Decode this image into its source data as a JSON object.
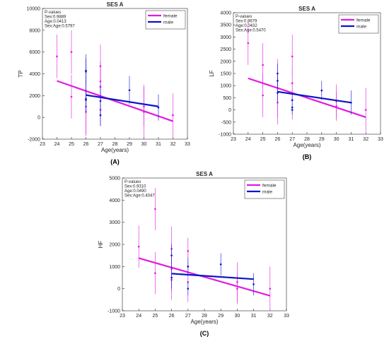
{
  "chart_data": [
    {
      "type": "scatter",
      "title": "SES A",
      "xlabel": "Age(years)",
      "ylabel": "TP",
      "panel_label": "(A)",
      "annotation": [
        "P-values",
        "Sex:0.9889",
        "Age:0.0413",
        "Sex:Age:0.5797"
      ],
      "xlim": [
        23,
        33
      ],
      "xticks": [
        23,
        24,
        25,
        26,
        27,
        28,
        29,
        30,
        31,
        32,
        33
      ],
      "ylim": [
        -2000,
        10000
      ],
      "yticks": [
        -2000,
        0,
        2000,
        4000,
        6000,
        8000,
        10000
      ],
      "legend": "upper right",
      "series": [
        {
          "name": "female",
          "color": "#e11be1",
          "x": [
            24,
            25,
            25,
            26,
            26,
            27,
            27,
            27,
            27,
            30,
            30,
            32
          ],
          "values": [
            5600,
            6000,
            1900,
            1000,
            500,
            4700,
            3300,
            2800,
            700,
            1000,
            500,
            200
          ],
          "errors": [
            2000,
            2000,
            2000,
            2500,
            2200,
            2000,
            1800,
            1500,
            1500,
            1800,
            2500,
            2000
          ],
          "fit_x": [
            24,
            32
          ],
          "fit_values": [
            3350,
            -350
          ]
        },
        {
          "name": "male",
          "color": "#0a14c8",
          "x": [
            26,
            26,
            26,
            26,
            27,
            27,
            29,
            31
          ],
          "values": [
            4300,
            4200,
            1700,
            1600,
            1500,
            200,
            2500,
            900
          ],
          "errors": [
            1500,
            1200,
            1200,
            1000,
            1500,
            1000,
            1300,
            1200
          ],
          "fit_x": [
            26,
            31
          ],
          "fit_values": [
            2050,
            1000
          ]
        }
      ]
    },
    {
      "type": "scatter",
      "title": "SES A",
      "xlabel": "Age(years)",
      "ylabel": "LF",
      "panel_label": "(B)",
      "annotation": [
        "P-values",
        "Sex:0.9679",
        "Age:0.0432",
        "Sex:Age:0.5470"
      ],
      "xlim": [
        23,
        33
      ],
      "xticks": [
        23,
        24,
        25,
        26,
        27,
        28,
        29,
        30,
        31,
        32,
        33
      ],
      "ylim": [
        -1000,
        4000
      ],
      "yticks": [
        -1000,
        -500,
        0,
        500,
        1000,
        1500,
        2000,
        2500,
        3000,
        3500,
        4000
      ],
      "legend": "upper right",
      "series": [
        {
          "name": "female",
          "color": "#e11be1",
          "x": [
            24,
            25,
            25,
            26,
            26,
            27,
            27,
            27,
            30,
            30,
            32
          ],
          "values": [
            2750,
            1850,
            600,
            900,
            300,
            2200,
            1100,
            400,
            350,
            150,
            0
          ],
          "errors": [
            900,
            900,
            900,
            1200,
            900,
            900,
            700,
            800,
            700,
            600,
            900
          ],
          "fit_x": [
            24,
            32
          ],
          "fit_values": [
            1300,
            -300
          ]
        },
        {
          "name": "male",
          "color": "#0a14c8",
          "x": [
            26,
            26,
            26,
            27,
            27,
            27,
            29,
            31
          ],
          "values": [
            1500,
            1200,
            700,
            400,
            100,
            0,
            800,
            300
          ],
          "errors": [
            400,
            300,
            400,
            300,
            200,
            200,
            400,
            500
          ],
          "fit_x": [
            26,
            31
          ],
          "fit_values": [
            750,
            300
          ]
        }
      ]
    },
    {
      "type": "scatter",
      "title": "SES A",
      "xlabel": "Age(years)",
      "ylabel": "HF",
      "panel_label": "(C)",
      "annotation": [
        "P-values",
        "Sex:0.9310",
        "Age:0.0490",
        "Sex:Age:0.4047"
      ],
      "xlim": [
        23,
        33
      ],
      "xticks": [
        23,
        24,
        25,
        26,
        27,
        28,
        29,
        30,
        31,
        32,
        33
      ],
      "ylim": [
        -1000,
        5000
      ],
      "yticks": [
        -1000,
        0,
        1000,
        2000,
        3000,
        4000,
        5000
      ],
      "legend": "upper right",
      "series": [
        {
          "name": "female",
          "color": "#e11be1",
          "x": [
            24,
            25,
            25,
            26,
            26,
            26,
            27,
            27,
            27,
            30,
            30,
            32
          ],
          "values": [
            1900,
            3600,
            700,
            1800,
            900,
            400,
            1700,
            1000,
            300,
            300,
            0,
            0
          ],
          "errors": [
            950,
            950,
            950,
            1000,
            1000,
            900,
            600,
            800,
            900,
            900,
            700,
            1000
          ],
          "fit_x": [
            24,
            32
          ],
          "fit_values": [
            1380,
            -320
          ]
        },
        {
          "name": "male",
          "color": "#0a14c8",
          "x": [
            26,
            26,
            27,
            27,
            29,
            31
          ],
          "values": [
            1500,
            500,
            1000,
            0,
            1100,
            200
          ],
          "errors": [
            500,
            500,
            400,
            300,
            500,
            500
          ],
          "fit_x": [
            26,
            31
          ],
          "fit_values": [
            680,
            430
          ]
        }
      ]
    }
  ]
}
